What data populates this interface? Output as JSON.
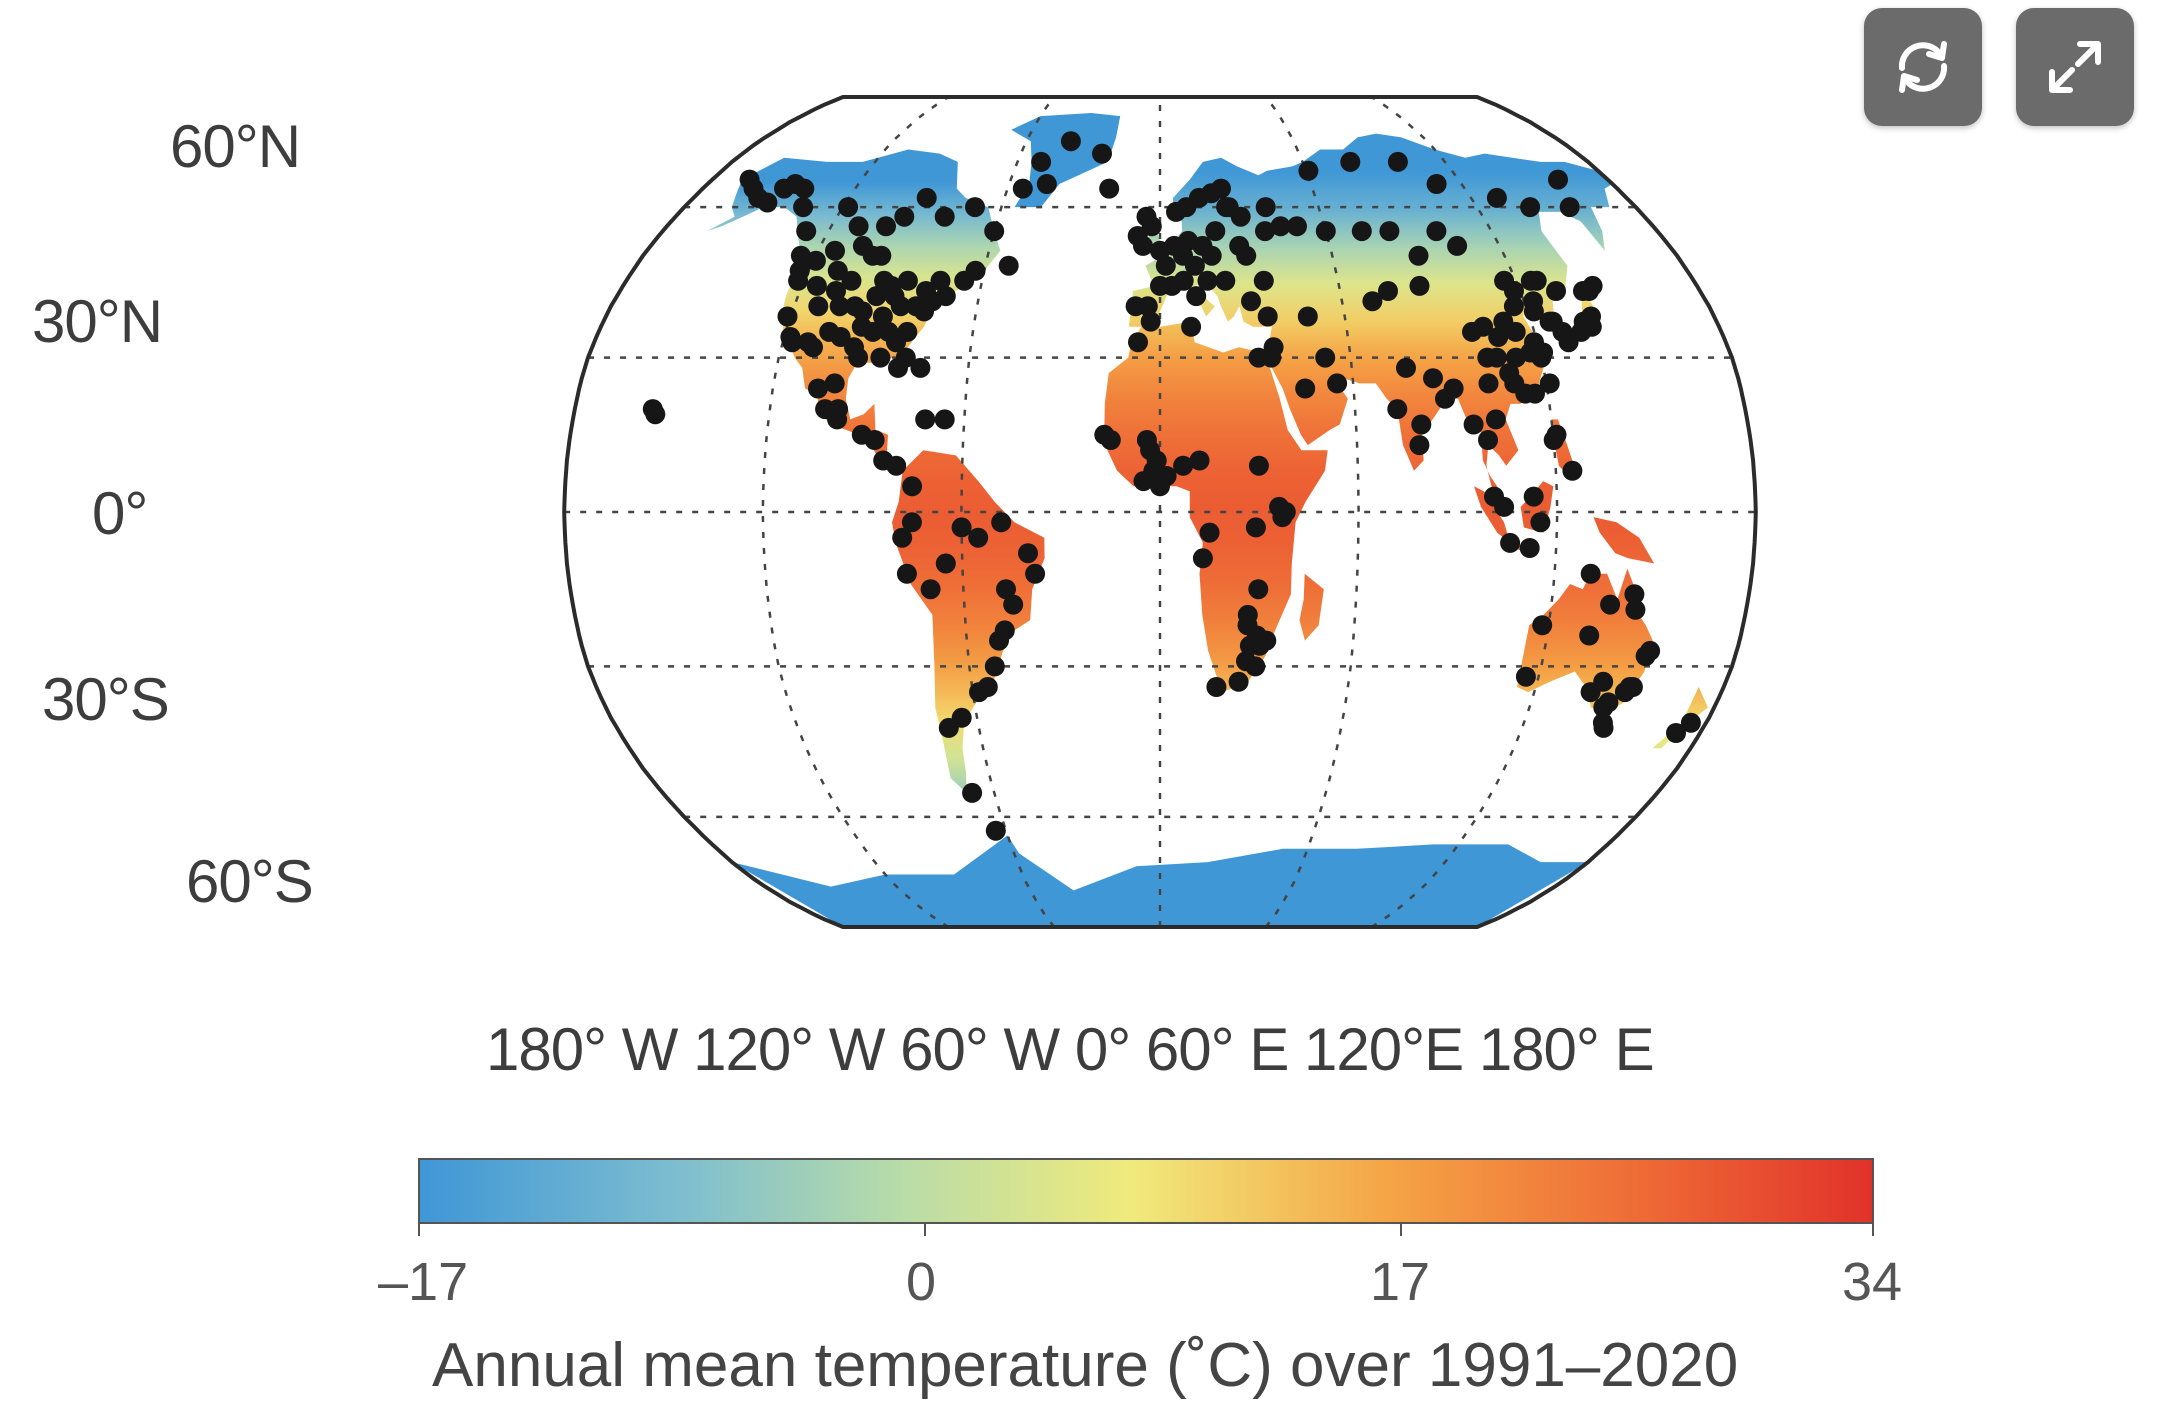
{
  "map": {
    "projection": "Robinson",
    "lat_labels": [
      "60°N",
      "30°N",
      "0°",
      "30°S",
      "60°S"
    ],
    "lon_labels": [
      "180° W",
      "120° W",
      "60° W",
      "0°",
      "60° E",
      "120°E",
      "180° E"
    ],
    "graticule_style": "dotted",
    "colors": {
      "ocean": "#ffffff",
      "outline": "#2b2b2b",
      "station": "#161616",
      "ice": "#4f9ad8"
    }
  },
  "colorbar": {
    "title": "Annual mean temperature (˚C) over 1991–2020",
    "tick_labels": [
      "–17",
      "0",
      "17",
      "34"
    ],
    "min": -17,
    "max": 34,
    "stops": [
      {
        "value": -17,
        "color": "#3f97d6"
      },
      {
        "value": -8,
        "color": "#7dbdd0"
      },
      {
        "value": 0,
        "color": "#b9dca8"
      },
      {
        "value": 8,
        "color": "#f0ea7c"
      },
      {
        "value": 17,
        "color": "#f5a446"
      },
      {
        "value": 26,
        "color": "#ee6a36"
      },
      {
        "value": 34,
        "color": "#e1322a"
      }
    ]
  },
  "controls": {
    "refresh_icon": "refresh-icon",
    "expand_icon": "expand-icon"
  },
  "stations": [
    [
      -165,
      66
    ],
    [
      -160,
      64
    ],
    [
      -155,
      62
    ],
    [
      -150,
      61
    ],
    [
      -148,
      64
    ],
    [
      -145,
      65
    ],
    [
      -140,
      64
    ],
    [
      -135,
      60
    ],
    [
      -128,
      55
    ],
    [
      -125,
      50
    ],
    [
      -123,
      47
    ],
    [
      -122,
      45
    ],
    [
      -121,
      38
    ],
    [
      -118,
      34
    ],
    [
      -117,
      33
    ],
    [
      -112,
      33
    ],
    [
      -110,
      32
    ],
    [
      -106,
      35
    ],
    [
      -105,
      40
    ],
    [
      -112,
      40
    ],
    [
      -115,
      44
    ],
    [
      -110,
      47
    ],
    [
      -104,
      45
    ],
    [
      -100,
      40
    ],
    [
      -97,
      32
    ],
    [
      -95,
      30
    ],
    [
      -96,
      36
    ],
    [
      -97,
      39
    ],
    [
      -94,
      42
    ],
    [
      -93,
      45
    ],
    [
      -90,
      38
    ],
    [
      -88,
      42
    ],
    [
      -87,
      35
    ],
    [
      -85,
      40
    ],
    [
      -84,
      33
    ],
    [
      -82,
      28
    ],
    [
      -81,
      35
    ],
    [
      -80,
      40
    ],
    [
      -78,
      43
    ],
    [
      -77,
      39
    ],
    [
      -75,
      41
    ],
    [
      -74,
      45
    ],
    [
      -71,
      42
    ],
    [
      -66,
      45
    ],
    [
      -63,
      47
    ],
    [
      -100,
      50
    ],
    [
      -97,
      50
    ],
    [
      -105,
      52
    ],
    [
      -114,
      51
    ],
    [
      -119,
      49
    ],
    [
      -123,
      49
    ],
    [
      -110,
      56
    ],
    [
      -100,
      56
    ],
    [
      -95,
      58
    ],
    [
      -90,
      62
    ],
    [
      -80,
      58
    ],
    [
      -70,
      60
    ],
    [
      -60,
      55
    ],
    [
      -52,
      48
    ],
    [
      -118,
      60
    ],
    [
      -75,
      28
    ],
    [
      -90,
      44
    ],
    [
      -108,
      43
    ],
    [
      -102,
      34
    ],
    [
      -92,
      35
    ],
    [
      -85,
      45
    ],
    [
      -80,
      30
    ],
    [
      -88,
      30
    ],
    [
      -101,
      25
    ],
    [
      -99,
      20
    ],
    [
      -103,
      20
    ],
    [
      -99,
      18
    ],
    [
      -106,
      24
    ],
    [
      -91,
      15
    ],
    [
      -87,
      14
    ],
    [
      -84,
      10
    ],
    [
      -80,
      9
    ],
    [
      -72,
      18
    ],
    [
      -66,
      18
    ],
    [
      -75,
      5
    ],
    [
      -75,
      -2
    ],
    [
      -78,
      -5
    ],
    [
      -77,
      -12
    ],
    [
      -70,
      -15
    ],
    [
      -65,
      -10
    ],
    [
      -60,
      -3
    ],
    [
      -55,
      -5
    ],
    [
      -48,
      -2
    ],
    [
      -40,
      -8
    ],
    [
      -38,
      -12
    ],
    [
      -45,
      -18
    ],
    [
      -48,
      -23
    ],
    [
      -47,
      -15
    ],
    [
      -50,
      -25
    ],
    [
      -52,
      -30
    ],
    [
      -55,
      -34
    ],
    [
      -58,
      -35
    ],
    [
      -65,
      -40
    ],
    [
      -70,
      -42
    ],
    [
      -68,
      -55
    ],
    [
      -64,
      -63
    ],
    [
      -156,
      20
    ],
    [
      -155,
      19
    ],
    [
      -20,
      64
    ],
    [
      -40,
      75
    ],
    [
      -25,
      72
    ],
    [
      -50,
      70
    ],
    [
      -45,
      65
    ],
    [
      -54,
      64
    ],
    [
      0,
      51
    ],
    [
      2,
      48
    ],
    [
      5,
      52
    ],
    [
      8,
      50
    ],
    [
      10,
      53
    ],
    [
      12,
      48
    ],
    [
      15,
      52
    ],
    [
      18,
      50
    ],
    [
      20,
      55
    ],
    [
      25,
      60
    ],
    [
      30,
      58
    ],
    [
      28,
      52
    ],
    [
      22,
      45
    ],
    [
      16,
      45
    ],
    [
      12,
      42
    ],
    [
      8,
      45
    ],
    [
      4,
      44
    ],
    [
      0,
      44
    ],
    [
      -4,
      40
    ],
    [
      -8,
      40
    ],
    [
      -3,
      37
    ],
    [
      -6,
      52
    ],
    [
      -8,
      54
    ],
    [
      -3,
      56
    ],
    [
      -5,
      58
    ],
    [
      6,
      59
    ],
    [
      10,
      60
    ],
    [
      15,
      62
    ],
    [
      20,
      63
    ],
    [
      24,
      64
    ],
    [
      26,
      60
    ],
    [
      30,
      50
    ],
    [
      35,
      45
    ],
    [
      30,
      41
    ],
    [
      35,
      38
    ],
    [
      38,
      55
    ],
    [
      44,
      56
    ],
    [
      40,
      60
    ],
    [
      50,
      56
    ],
    [
      60,
      55
    ],
    [
      73,
      55
    ],
    [
      83,
      55
    ],
    [
      48,
      38
    ],
    [
      52,
      30
    ],
    [
      45,
      24
    ],
    [
      55,
      25
    ],
    [
      36,
      32
    ],
    [
      35,
      30
    ],
    [
      31,
      30
    ],
    [
      10,
      36
    ],
    [
      -7,
      33
    ],
    [
      -15,
      14
    ],
    [
      -17,
      15
    ],
    [
      -3,
      12
    ],
    [
      -2,
      8
    ],
    [
      -5,
      6
    ],
    [
      -1,
      10
    ],
    [
      2,
      7
    ],
    [
      0,
      5
    ],
    [
      -4,
      14
    ],
    [
      7,
      9
    ],
    [
      12,
      10
    ],
    [
      30,
      9
    ],
    [
      36,
      1
    ],
    [
      38,
      0
    ],
    [
      37,
      -1
    ],
    [
      29,
      -3
    ],
    [
      15,
      -4
    ],
    [
      13,
      -9
    ],
    [
      30,
      -15
    ],
    [
      27,
      -20
    ],
    [
      30,
      -24
    ],
    [
      31,
      -26
    ],
    [
      28,
      -26
    ],
    [
      27,
      -29
    ],
    [
      25,
      -33
    ],
    [
      30,
      -30
    ],
    [
      18,
      -34
    ],
    [
      33,
      -25
    ],
    [
      27,
      -22
    ],
    [
      61,
      68
    ],
    [
      80,
      70
    ],
    [
      100,
      70
    ],
    [
      110,
      65
    ],
    [
      130,
      62
    ],
    [
      140,
      60
    ],
    [
      155,
      60
    ],
    [
      160,
      66
    ],
    [
      100,
      55
    ],
    [
      105,
      52
    ],
    [
      90,
      50
    ],
    [
      87,
      44
    ],
    [
      76,
      43
    ],
    [
      70,
      41
    ],
    [
      77,
      28
    ],
    [
      73,
      20
    ],
    [
      79,
      13
    ],
    [
      80,
      17
    ],
    [
      88,
      22
    ],
    [
      85,
      26
    ],
    [
      91,
      24
    ],
    [
      96,
      17
    ],
    [
      100,
      14
    ],
    [
      103,
      18
    ],
    [
      101,
      3
    ],
    [
      104,
      1
    ],
    [
      106,
      -6
    ],
    [
      112,
      -7
    ],
    [
      113,
      3
    ],
    [
      115,
      -2
    ],
    [
      120,
      14
    ],
    [
      121,
      15
    ],
    [
      125,
      8
    ],
    [
      100,
      35
    ],
    [
      103,
      30
    ],
    [
      104,
      36
    ],
    [
      108,
      34
    ],
    [
      110,
      25
    ],
    [
      112,
      30
    ],
    [
      113,
      23
    ],
    [
      114,
      35
    ],
    [
      116,
      40
    ],
    [
      117,
      31
    ],
    [
      119,
      33
    ],
    [
      120,
      30
    ],
    [
      121,
      31
    ],
    [
      121,
      25
    ],
    [
      122,
      39
    ],
    [
      123,
      41
    ],
    [
      126,
      37
    ],
    [
      127,
      37
    ],
    [
      127,
      45
    ],
    [
      129,
      35
    ],
    [
      130,
      33
    ],
    [
      132,
      43
    ],
    [
      135,
      35
    ],
    [
      137,
      37
    ],
    [
      139,
      36
    ],
    [
      140,
      38
    ],
    [
      141,
      43
    ],
    [
      143,
      43
    ],
    [
      145,
      44
    ],
    [
      116,
      23
    ],
    [
      109,
      27
    ],
    [
      102,
      25
    ],
    [
      106,
      30
    ],
    [
      111,
      37
    ],
    [
      116,
      45
    ],
    [
      118,
      43
    ],
    [
      125,
      45
    ],
    [
      116,
      -32
    ],
    [
      118,
      -22
    ],
    [
      131,
      -12
    ],
    [
      133,
      -24
    ],
    [
      138,
      -35
    ],
    [
      138,
      -18
    ],
    [
      141,
      -33
    ],
    [
      144,
      -38
    ],
    [
      145,
      -37
    ],
    [
      146,
      -41
    ],
    [
      147,
      -42
    ],
    [
      150,
      -34
    ],
    [
      151,
      -34
    ],
    [
      152,
      -28
    ],
    [
      153,
      -27
    ],
    [
      146,
      -19
    ],
    [
      145,
      -16
    ],
    [
      149,
      -35
    ],
    [
      175,
      -41
    ],
    [
      172,
      -43
    ]
  ]
}
